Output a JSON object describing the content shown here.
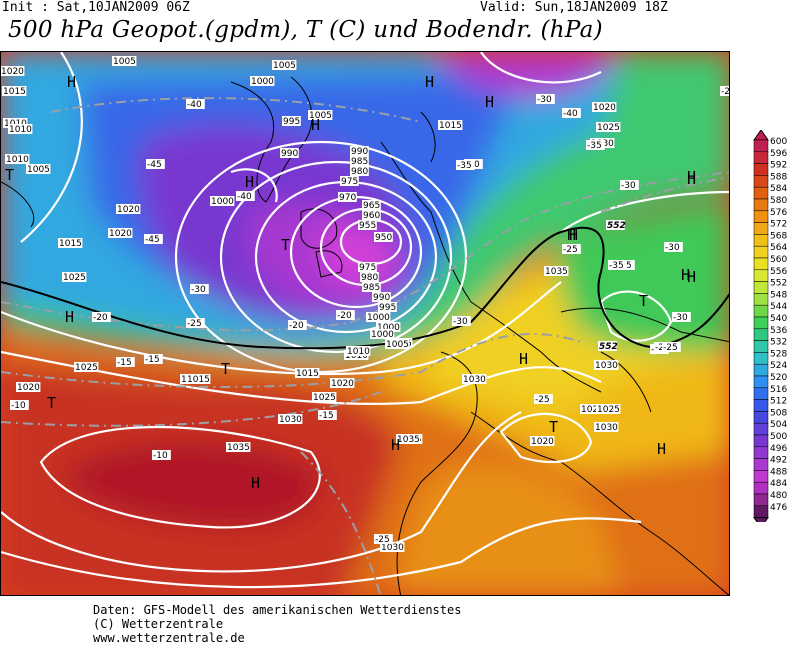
{
  "header": {
    "init": "Init : Sat,10JAN2009 06Z",
    "valid": "Valid: Sun,18JAN2009 18Z",
    "title": "500 hPa Geopot.(gpdm), T (C) und Bodendr. (hPa)"
  },
  "legend": {
    "values": [
      "600",
      "596",
      "592",
      "588",
      "584",
      "580",
      "576",
      "572",
      "568",
      "564",
      "560",
      "556",
      "552",
      "548",
      "544",
      "540",
      "536",
      "532",
      "528",
      "524",
      "520",
      "516",
      "512",
      "508",
      "504",
      "500",
      "496",
      "492",
      "488",
      "484",
      "480",
      "476"
    ],
    "colors": [
      "#c02050",
      "#c82838",
      "#d03020",
      "#d84818",
      "#e06010",
      "#e87810",
      "#f09010",
      "#f0a818",
      "#f0c018",
      "#f0d020",
      "#e8e020",
      "#d8e830",
      "#c0e838",
      "#a0e040",
      "#70d848",
      "#40d058",
      "#30c880",
      "#30c8a8",
      "#30c0c8",
      "#30a8e0",
      "#3090f0",
      "#3070f0",
      "#3858e8",
      "#4848e0",
      "#6040d8",
      "#7838d0",
      "#9038d0",
      "#a838d0",
      "#c038d0",
      "#b030c0",
      "#902890",
      "#601860"
    ]
  },
  "map": {
    "pressure_labels": [
      "1020",
      "1015",
      "1010",
      "1005",
      "1005",
      "1005",
      "1000",
      "1005",
      "1015",
      "1010",
      "1020",
      "995",
      "990",
      "990",
      "985",
      "980",
      "975",
      "970",
      "965",
      "960",
      "955",
      "950",
      "1000",
      "1015",
      "1020",
      "1025",
      "1015",
      "1010",
      "1020",
      "1025",
      "1030",
      "1035",
      "1030",
      "1035",
      "1030",
      "1030",
      "1025",
      "1015",
      "1005",
      "1000",
      "1000",
      "995",
      "990",
      "985",
      "980",
      "975",
      "1035",
      "1030",
      "1025",
      "1020",
      "1020",
      "1025",
      "1030",
      "1035",
      "1010",
      "1015",
      "1020",
      "1025",
      "1010",
      "1005",
      "1000"
    ],
    "temperature_labels": [
      "-40",
      "-45",
      "-40",
      "-45",
      "-30",
      "-35",
      "-30",
      "-40",
      "-35",
      "-30",
      "-25",
      "-20",
      "-20",
      "-25",
      "-30",
      "-20",
      "-15",
      "-15",
      "-15",
      "-10",
      "-10",
      "-25",
      "-25",
      "-30",
      "-25",
      "-20",
      "-25",
      "-35",
      "-30",
      "-25",
      "-35",
      "-30"
    ],
    "geopotential_labels": [
      "552",
      "552"
    ],
    "centers": [
      "H",
      "H",
      "H",
      "H",
      "H",
      "H",
      "T",
      "T",
      "T",
      "H",
      "H",
      "T",
      "H",
      "T",
      "H",
      "H",
      "H",
      "T",
      "H",
      "H",
      "H",
      "H"
    ]
  },
  "footer": {
    "line1": "Daten: GFS-Modell des amerikanischen Wetterdienstes",
    "line2": "(C) Wetterzentrale",
    "line3": "www.wetterzentrale.de"
  }
}
